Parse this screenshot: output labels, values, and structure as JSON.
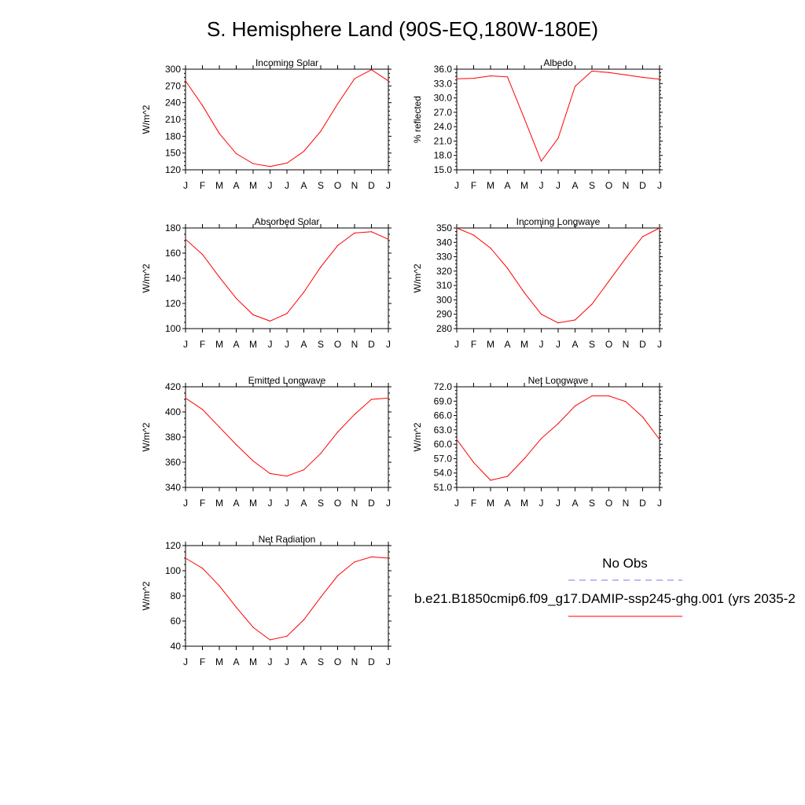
{
  "page_title": "S. Hemisphere Land (90S-EQ,180W-180E)",
  "legend": {
    "obs_label": "No Obs",
    "obs_color": "#7777ee",
    "model_label": "b.e21.B1850cmip6.f09_g17.DAMIP-ssp245-ghg.001 (yrs 2035-2",
    "model_color": "#ff0000"
  },
  "chart_data": [
    {
      "type": "line",
      "title": "Incoming Solar",
      "ylabel": "W/m^2",
      "categories": [
        "J",
        "F",
        "M",
        "A",
        "M",
        "J",
        "J",
        "A",
        "S",
        "O",
        "N",
        "D",
        "J"
      ],
      "ylim": [
        120,
        300
      ],
      "yticks": [
        "120",
        "150",
        "180",
        "210",
        "240",
        "270",
        "300"
      ],
      "values": [
        279,
        235,
        185,
        149,
        131,
        126,
        132,
        153,
        189,
        238,
        283,
        299,
        279
      ]
    },
    {
      "type": "line",
      "title": "Albedo",
      "ylabel": "% reflected",
      "categories": [
        "J",
        "F",
        "M",
        "A",
        "M",
        "J",
        "J",
        "A",
        "S",
        "O",
        "N",
        "D",
        "J"
      ],
      "ylim": [
        15,
        36
      ],
      "yticks": [
        "15.0",
        "18.0",
        "21.0",
        "24.0",
        "27.0",
        "30.0",
        "33.0",
        "36.0"
      ],
      "values": [
        34.0,
        34.1,
        34.6,
        34.4,
        25.7,
        16.8,
        21.6,
        32.4,
        35.6,
        35.3,
        34.8,
        34.3,
        33.9
      ]
    },
    {
      "type": "line",
      "title": "Absorbed Solar",
      "ylabel": "W/m^2",
      "categories": [
        "J",
        "F",
        "M",
        "A",
        "M",
        "J",
        "J",
        "A",
        "S",
        "O",
        "N",
        "D",
        "J"
      ],
      "ylim": [
        100,
        180
      ],
      "yticks": [
        "100",
        "120",
        "140",
        "160",
        "180"
      ],
      "values": [
        171,
        159,
        141,
        124,
        111,
        106,
        112,
        129,
        149,
        166,
        176,
        177,
        171
      ]
    },
    {
      "type": "line",
      "title": "Incoming Longwave",
      "ylabel": "W/m^2",
      "categories": [
        "J",
        "F",
        "M",
        "A",
        "M",
        "J",
        "J",
        "A",
        "S",
        "O",
        "N",
        "D",
        "J"
      ],
      "ylim": [
        280,
        350
      ],
      "yticks": [
        "280",
        "290",
        "300",
        "310",
        "320",
        "330",
        "340",
        "350"
      ],
      "values": [
        350,
        345,
        336,
        322,
        305,
        290,
        284,
        286,
        297,
        313,
        329,
        344,
        350
      ]
    },
    {
      "type": "line",
      "title": "Emitted Longwave",
      "ylabel": "W/m^2",
      "categories": [
        "J",
        "F",
        "M",
        "A",
        "M",
        "J",
        "J",
        "A",
        "S",
        "O",
        "N",
        "D",
        "J"
      ],
      "ylim": [
        340,
        420
      ],
      "yticks": [
        "340",
        "360",
        "380",
        "400",
        "420"
      ],
      "values": [
        411,
        402,
        388,
        374,
        361,
        351,
        349,
        354,
        367,
        384,
        398,
        410,
        411
      ]
    },
    {
      "type": "line",
      "title": "Net Longwave",
      "ylabel": "W/m^2",
      "categories": [
        "J",
        "F",
        "M",
        "A",
        "M",
        "J",
        "J",
        "A",
        "S",
        "O",
        "N",
        "D",
        "J"
      ],
      "ylim": [
        51,
        72
      ],
      "yticks": [
        "51.0",
        "54.0",
        "57.0",
        "60.0",
        "63.0",
        "66.0",
        "69.0",
        "72.0"
      ],
      "values": [
        61.0,
        56.2,
        52.5,
        53.3,
        57.0,
        61.2,
        64.3,
        68.0,
        70.1,
        70.1,
        68.9,
        65.7,
        61.0
      ]
    },
    {
      "type": "line",
      "title": "Net Radiation",
      "ylabel": "W/m^2",
      "categories": [
        "J",
        "F",
        "M",
        "A",
        "M",
        "J",
        "J",
        "A",
        "S",
        "O",
        "N",
        "D",
        "J"
      ],
      "ylim": [
        40,
        120
      ],
      "yticks": [
        "40",
        "60",
        "80",
        "100",
        "120"
      ],
      "values": [
        110,
        102,
        88,
        71,
        55,
        45,
        48,
        61,
        79,
        96,
        107,
        111,
        110
      ]
    }
  ]
}
